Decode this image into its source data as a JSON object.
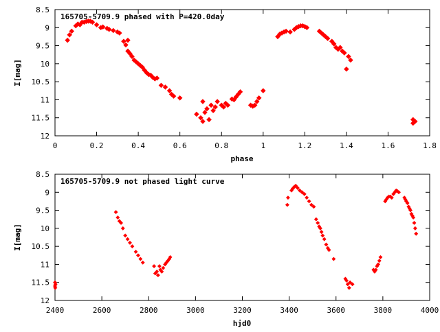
{
  "chart_data": [
    {
      "type": "scatter",
      "title": "165705-5709.9 phased with P=420.0day",
      "xlabel": "phase",
      "ylabel": "I[mag]",
      "xlim": [
        0,
        1.8
      ],
      "ylim": [
        8.5,
        12
      ],
      "y_inverted": true,
      "x_ticks": [
        "0",
        "0.2",
        "0.4",
        "0.6",
        "0.8",
        "1",
        "1.2",
        "1.4",
        "1.6",
        "1.8"
      ],
      "y_ticks": [
        "8.5",
        "9",
        "9.5",
        "10",
        "10.5",
        "11",
        "11.5",
        "12"
      ],
      "marker_color": "#ff0000",
      "grid": false,
      "points": [
        [
          0.06,
          9.35
        ],
        [
          0.07,
          9.2
        ],
        [
          0.08,
          9.1
        ],
        [
          0.1,
          8.95
        ],
        [
          0.11,
          8.9
        ],
        [
          0.12,
          8.92
        ],
        [
          0.13,
          8.85
        ],
        [
          0.14,
          8.85
        ],
        [
          0.15,
          8.83
        ],
        [
          0.16,
          8.82
        ],
        [
          0.17,
          8.82
        ],
        [
          0.18,
          8.85
        ],
        [
          0.2,
          8.92
        ],
        [
          0.22,
          9.0
        ],
        [
          0.23,
          8.98
        ],
        [
          0.25,
          9.02
        ],
        [
          0.26,
          9.05
        ],
        [
          0.28,
          9.08
        ],
        [
          0.3,
          9.12
        ],
        [
          0.31,
          9.15
        ],
        [
          0.33,
          9.38
        ],
        [
          0.34,
          9.48
        ],
        [
          0.35,
          9.35
        ],
        [
          0.35,
          9.65
        ],
        [
          0.36,
          9.72
        ],
        [
          0.37,
          9.8
        ],
        [
          0.38,
          9.9
        ],
        [
          0.39,
          9.95
        ],
        [
          0.4,
          10.0
        ],
        [
          0.41,
          10.05
        ],
        [
          0.42,
          10.1
        ],
        [
          0.43,
          10.18
        ],
        [
          0.44,
          10.25
        ],
        [
          0.45,
          10.3
        ],
        [
          0.46,
          10.32
        ],
        [
          0.47,
          10.38
        ],
        [
          0.48,
          10.42
        ],
        [
          0.49,
          10.4
        ],
        [
          0.51,
          10.6
        ],
        [
          0.53,
          10.65
        ],
        [
          0.55,
          10.75
        ],
        [
          0.56,
          10.85
        ],
        [
          0.57,
          10.9
        ],
        [
          0.6,
          10.95
        ],
        [
          0.68,
          11.4
        ],
        [
          0.7,
          11.5
        ],
        [
          0.71,
          11.05
        ],
        [
          0.71,
          11.6
        ],
        [
          0.72,
          11.35
        ],
        [
          0.73,
          11.25
        ],
        [
          0.74,
          11.55
        ],
        [
          0.75,
          11.15
        ],
        [
          0.76,
          11.3
        ],
        [
          0.77,
          11.2
        ],
        [
          0.78,
          11.05
        ],
        [
          0.8,
          11.15
        ],
        [
          0.81,
          11.2
        ],
        [
          0.82,
          11.1
        ],
        [
          0.83,
          11.15
        ],
        [
          0.85,
          10.98
        ],
        [
          0.86,
          11.0
        ],
        [
          0.87,
          10.92
        ],
        [
          0.88,
          10.85
        ],
        [
          0.89,
          10.78
        ],
        [
          0.94,
          11.15
        ],
        [
          0.95,
          11.18
        ],
        [
          0.96,
          11.15
        ],
        [
          0.97,
          11.05
        ],
        [
          0.98,
          10.95
        ],
        [
          1.0,
          10.75
        ],
        [
          1.07,
          9.25
        ],
        [
          1.08,
          9.18
        ],
        [
          1.09,
          9.15
        ],
        [
          1.1,
          9.12
        ],
        [
          1.11,
          9.1
        ],
        [
          1.13,
          9.12
        ],
        [
          1.15,
          9.05
        ],
        [
          1.16,
          9.0
        ],
        [
          1.17,
          8.97
        ],
        [
          1.18,
          8.95
        ],
        [
          1.19,
          8.95
        ],
        [
          1.2,
          8.97
        ],
        [
          1.21,
          9.0
        ],
        [
          1.27,
          9.1
        ],
        [
          1.28,
          9.15
        ],
        [
          1.29,
          9.2
        ],
        [
          1.3,
          9.25
        ],
        [
          1.31,
          9.3
        ],
        [
          1.33,
          9.38
        ],
        [
          1.34,
          9.45
        ],
        [
          1.35,
          9.55
        ],
        [
          1.36,
          9.6
        ],
        [
          1.37,
          9.55
        ],
        [
          1.38,
          9.65
        ],
        [
          1.39,
          9.7
        ],
        [
          1.4,
          10.15
        ],
        [
          1.41,
          9.8
        ],
        [
          1.42,
          9.9
        ],
        [
          1.72,
          11.55
        ],
        [
          1.72,
          11.65
        ],
        [
          1.73,
          11.6
        ]
      ]
    },
    {
      "type": "scatter",
      "title": "165705-5709.9 not phased light curve",
      "xlabel": "hjd0",
      "ylabel": "I[mag]",
      "xlim": [
        2400,
        4000
      ],
      "ylim": [
        8.5,
        12
      ],
      "y_inverted": true,
      "x_ticks": [
        "2400",
        "2600",
        "2800",
        "3000",
        "3200",
        "3400",
        "3600",
        "3800",
        "4000"
      ],
      "y_ticks": [
        "8.5",
        "9",
        "9.5",
        "10",
        "10.5",
        "11",
        "11.5",
        "12"
      ],
      "marker_color": "#ff0000",
      "grid": false,
      "points": [
        [
          2400,
          11.5
        ],
        [
          2400,
          11.6
        ],
        [
          2401,
          11.65
        ],
        [
          2402,
          11.55
        ],
        [
          2660,
          9.55
        ],
        [
          2668,
          9.7
        ],
        [
          2675,
          9.8
        ],
        [
          2682,
          9.85
        ],
        [
          2690,
          10.0
        ],
        [
          2700,
          10.2
        ],
        [
          2710,
          10.3
        ],
        [
          2720,
          10.4
        ],
        [
          2730,
          10.5
        ],
        [
          2745,
          10.65
        ],
        [
          2755,
          10.75
        ],
        [
          2765,
          10.85
        ],
        [
          2775,
          10.95
        ],
        [
          2823,
          11.05
        ],
        [
          2828,
          11.25
        ],
        [
          2835,
          11.2
        ],
        [
          2840,
          11.3
        ],
        [
          2846,
          11.05
        ],
        [
          2850,
          11.15
        ],
        [
          2856,
          11.2
        ],
        [
          2862,
          11.1
        ],
        [
          2870,
          11.0
        ],
        [
          2876,
          10.95
        ],
        [
          2882,
          10.9
        ],
        [
          2888,
          10.85
        ],
        [
          2892,
          10.8
        ],
        [
          3392,
          9.35
        ],
        [
          3395,
          9.15
        ],
        [
          3410,
          8.95
        ],
        [
          3415,
          8.9
        ],
        [
          3422,
          8.85
        ],
        [
          3428,
          8.82
        ],
        [
          3436,
          8.88
        ],
        [
          3445,
          8.95
        ],
        [
          3455,
          9.0
        ],
        [
          3465,
          9.05
        ],
        [
          3475,
          9.15
        ],
        [
          3485,
          9.25
        ],
        [
          3495,
          9.35
        ],
        [
          3505,
          9.4
        ],
        [
          3515,
          9.75
        ],
        [
          3522,
          9.85
        ],
        [
          3528,
          9.95
        ],
        [
          3533,
          10.0
        ],
        [
          3538,
          10.1
        ],
        [
          3543,
          10.2
        ],
        [
          3550,
          10.3
        ],
        [
          3558,
          10.45
        ],
        [
          3565,
          10.55
        ],
        [
          3570,
          10.6
        ],
        [
          3590,
          10.85
        ],
        [
          3640,
          11.4
        ],
        [
          3645,
          11.45
        ],
        [
          3650,
          11.55
        ],
        [
          3656,
          11.65
        ],
        [
          3660,
          11.5
        ],
        [
          3670,
          11.55
        ],
        [
          3760,
          11.15
        ],
        [
          3765,
          11.2
        ],
        [
          3770,
          11.15
        ],
        [
          3775,
          11.05
        ],
        [
          3780,
          11.0
        ],
        [
          3785,
          10.9
        ],
        [
          3790,
          10.8
        ],
        [
          3810,
          9.25
        ],
        [
          3815,
          9.2
        ],
        [
          3820,
          9.15
        ],
        [
          3826,
          9.12
        ],
        [
          3832,
          9.12
        ],
        [
          3838,
          9.15
        ],
        [
          3845,
          9.05
        ],
        [
          3851,
          9.0
        ],
        [
          3857,
          8.95
        ],
        [
          3862,
          8.97
        ],
        [
          3868,
          9.0
        ],
        [
          3892,
          9.15
        ],
        [
          3896,
          9.2
        ],
        [
          3900,
          9.25
        ],
        [
          3905,
          9.3
        ],
        [
          3910,
          9.4
        ],
        [
          3914,
          9.45
        ],
        [
          3918,
          9.5
        ],
        [
          3922,
          9.6
        ],
        [
          3926,
          9.65
        ],
        [
          3930,
          9.7
        ],
        [
          3934,
          9.85
        ],
        [
          3938,
          10.0
        ],
        [
          3942,
          10.15
        ]
      ]
    }
  ]
}
